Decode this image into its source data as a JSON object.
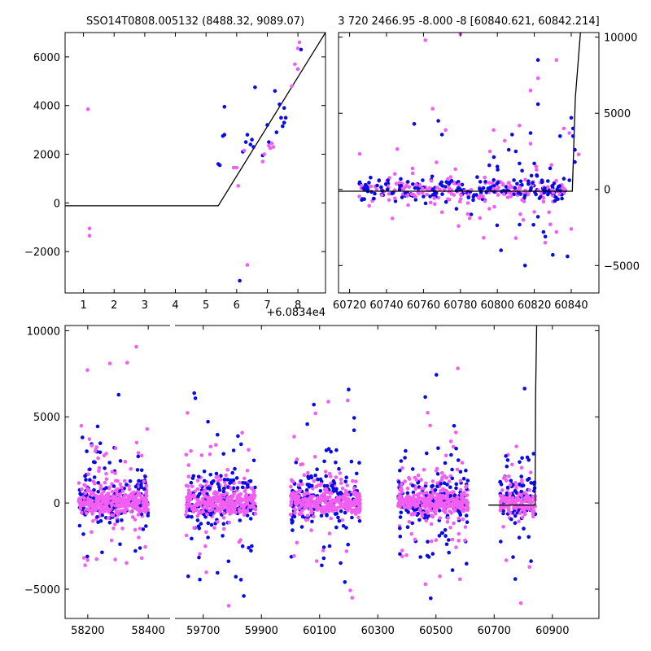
{
  "chart_data": [
    {
      "type": "scatter",
      "title": "SSO14T0808.005132 (8488.32, 9089.07)",
      "xlim": [
        0.4,
        8.9
      ],
      "ylim": [
        -3700,
        7000
      ],
      "x_ticks": [
        1,
        2,
        3,
        4,
        5,
        6,
        7,
        8
      ],
      "x_tick_labels": [
        "1",
        "2",
        "3",
        "4",
        "5",
        "6",
        "7",
        "8"
      ],
      "y_ticks": [
        -2000,
        0,
        2000,
        4000,
        6000
      ],
      "y_tick_labels": [
        "−2000",
        "0",
        "2000",
        "4000",
        "6000"
      ],
      "x_offset_label": "+6.0834e4",
      "series": [
        {
          "color": "#0a0ae6",
          "points": [
            [
              5.4,
              1600
            ],
            [
              5.45,
              1550
            ],
            [
              5.55,
              2750
            ],
            [
              5.6,
              2800
            ],
            [
              5.6,
              3950
            ],
            [
              6.2,
              2100
            ],
            [
              6.3,
              2500
            ],
            [
              6.35,
              2800
            ],
            [
              6.45,
              2400
            ],
            [
              6.5,
              2600
            ],
            [
              6.55,
              2300
            ],
            [
              6.6,
              4750
            ],
            [
              6.85,
              1950
            ],
            [
              7.0,
              3200
            ],
            [
              7.05,
              2500
            ],
            [
              7.25,
              4600
            ],
            [
              7.3,
              2900
            ],
            [
              7.4,
              4050
            ],
            [
              7.45,
              3500
            ],
            [
              7.5,
              3150
            ],
            [
              7.55,
              3300
            ],
            [
              7.6,
              3500
            ],
            [
              7.55,
              3900
            ],
            [
              8.0,
              5500
            ],
            [
              8.1,
              6300
            ],
            [
              6.1,
              -3200
            ]
          ]
        },
        {
          "color": "#f15ef1",
          "points": [
            [
              1.15,
              3850
            ],
            [
              1.2,
              -1050
            ],
            [
              1.2,
              -1350
            ],
            [
              5.9,
              1450
            ],
            [
              6.0,
              1450
            ],
            [
              6.05,
              700
            ],
            [
              6.25,
              2150
            ],
            [
              6.35,
              -2550
            ],
            [
              6.85,
              1700
            ],
            [
              6.9,
              2000
            ],
            [
              7.05,
              2350
            ],
            [
              7.1,
              2250
            ],
            [
              7.15,
              2450
            ],
            [
              7.2,
              2300
            ],
            [
              7.8,
              4800
            ],
            [
              7.9,
              5700
            ],
            [
              8.0,
              5500
            ],
            [
              8.05,
              6600
            ],
            [
              8.0,
              6350
            ]
          ]
        }
      ],
      "model_line": [
        [
          0.4,
          -120
        ],
        [
          5.4,
          -120
        ],
        [
          8.9,
          7000
        ]
      ]
    },
    {
      "type": "scatter",
      "title": "3 720 2466.95 -8.000 -8 [60840.621, 60842.214]",
      "xlim": [
        60714,
        60855
      ],
      "ylim": [
        -6800,
        10300
      ],
      "x_ticks": [
        60720,
        60740,
        60760,
        60780,
        60800,
        60820,
        60840
      ],
      "x_tick_labels": [
        "60720",
        "60740",
        "60760",
        "60780",
        "60800",
        "60820",
        "60840"
      ],
      "y_ticks": [
        -5000,
        0,
        5000,
        10000
      ],
      "y_tick_labels": [
        "−5000",
        "0",
        "5000",
        "10000"
      ],
      "series": [
        {
          "color": "#0a0ae6",
          "points": [
            [
              60755,
              4300
            ],
            [
              60768,
              4500
            ],
            [
              60770,
              3600
            ],
            [
              60802,
              -4000
            ],
            [
              60818,
              3700
            ],
            [
              60820,
              1700
            ],
            [
              60822,
              5600
            ],
            [
              60825,
              -2800
            ],
            [
              60826,
              -3100
            ],
            [
              60822,
              -1800
            ],
            [
              60830,
              -4300
            ],
            [
              60835,
              -600
            ],
            [
              60838,
              -4400
            ],
            [
              60840,
              4700
            ],
            [
              60841,
              4000
            ],
            [
              60841,
              3500
            ],
            [
              60842,
              2600
            ],
            [
              60842,
              1800
            ],
            [
              60815,
              -5000
            ],
            [
              60800,
              1500
            ],
            [
              60822,
              8500
            ],
            [
              60834,
              3500
            ],
            [
              60808,
              3600
            ],
            [
              60810,
              2500
            ],
            [
              60812,
              1700
            ],
            [
              60836,
              700
            ],
            [
              60839,
              600
            ]
          ]
        },
        {
          "color": "#f15ef1",
          "points": [
            [
              60761,
              9800
            ],
            [
              60780,
              10200
            ],
            [
              60765,
              5300
            ],
            [
              60772,
              3900
            ],
            [
              60798,
              3900
            ],
            [
              60818,
              6500
            ],
            [
              60822,
              7300
            ],
            [
              60832,
              8500
            ],
            [
              60836,
              4000
            ],
            [
              60839,
              3700
            ],
            [
              60844,
              2300
            ],
            [
              60840,
              -2600
            ],
            [
              60826,
              -3500
            ],
            [
              60832,
              -2800
            ],
            [
              60825,
              -800
            ],
            [
              60810,
              -3200
            ],
            [
              60814,
              -2000
            ],
            [
              60828,
              -1500
            ],
            [
              60812,
              4200
            ],
            [
              60796,
              2500
            ],
            [
              60804,
              3200
            ],
            [
              60785,
              -1900
            ],
            [
              60770,
              -1500
            ],
            [
              60779,
              -2400
            ],
            [
              60818,
              3000
            ],
            [
              60821,
              1500
            ]
          ]
        }
      ],
      "model_line": [
        [
          60714,
          -120
        ],
        [
          60840.6,
          -120
        ],
        [
          60842.2,
          6000
        ],
        [
          60845,
          10300
        ]
      ]
    },
    {
      "type": "scatter",
      "x_ticks": [
        58200,
        58400,
        59700,
        59900,
        60100,
        60300,
        60500,
        60700,
        60900
      ],
      "x_tick_labels": [
        "58200",
        "58400",
        "59700",
        "59900",
        "60100",
        "60300",
        "60500",
        "60700",
        "60900"
      ],
      "y_ticks": [
        -5000,
        0,
        5000,
        10000
      ],
      "y_tick_labels": [
        "−5000",
        "0",
        "5000",
        "10000"
      ],
      "ylim": [
        -6700,
        10300
      ],
      "x_segments": [
        [
          58125,
          58475
        ],
        [
          59600,
          61060
        ]
      ],
      "seasons": [
        {
          "x_range": [
            58170,
            58400
          ],
          "n": 330
        },
        {
          "x_range": [
            59640,
            59880
          ],
          "n": 330
        },
        {
          "x_range": [
            60000,
            60240
          ],
          "n": 330
        },
        {
          "x_range": [
            60370,
            60610
          ],
          "n": 340
        },
        {
          "x_range": [
            60720,
            60842
          ],
          "n": 150
        }
      ],
      "series_colors": [
        "#0a0ae6",
        "#f15ef1"
      ],
      "model_line": [
        [
          60680,
          -120
        ],
        [
          60840.6,
          -120
        ],
        [
          60842.2,
          6000
        ],
        [
          60846,
          10300
        ]
      ]
    }
  ]
}
